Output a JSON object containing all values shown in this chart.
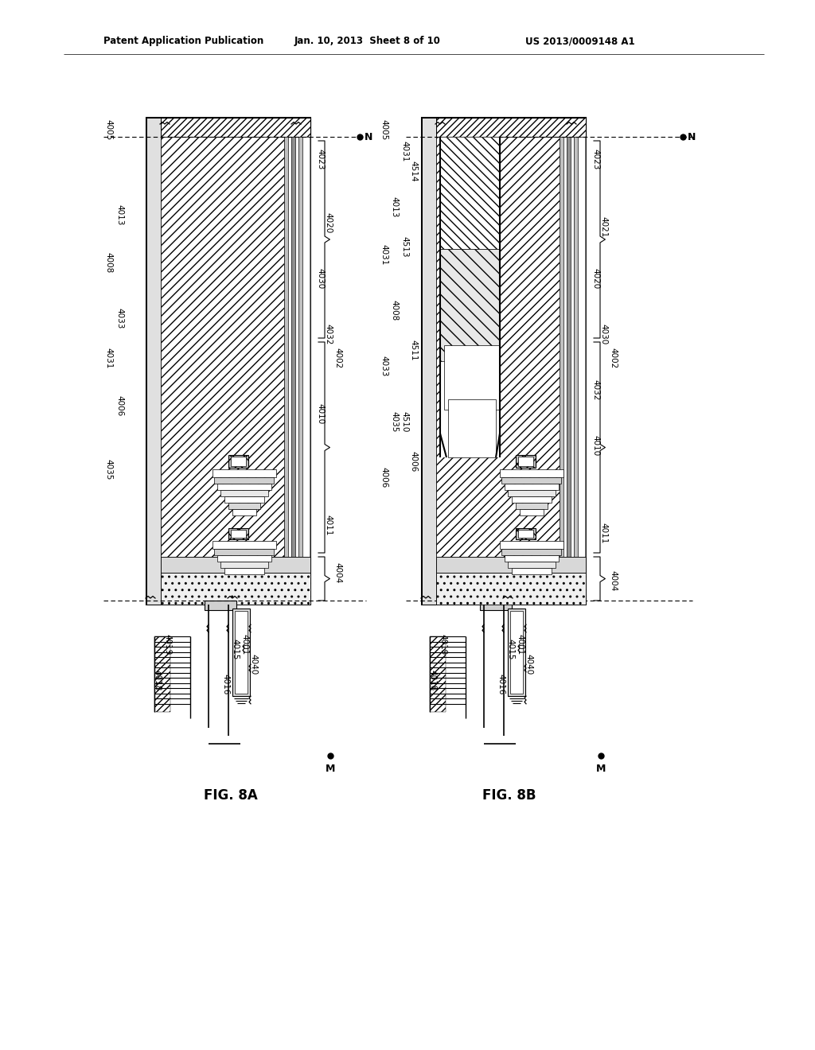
{
  "header_left": "Patent Application Publication",
  "header_mid": "Jan. 10, 2013  Sheet 8 of 10",
  "header_right": "US 2013/0009148 A1",
  "fig_a": "FIG. 8A",
  "fig_b": "FIG. 8B"
}
